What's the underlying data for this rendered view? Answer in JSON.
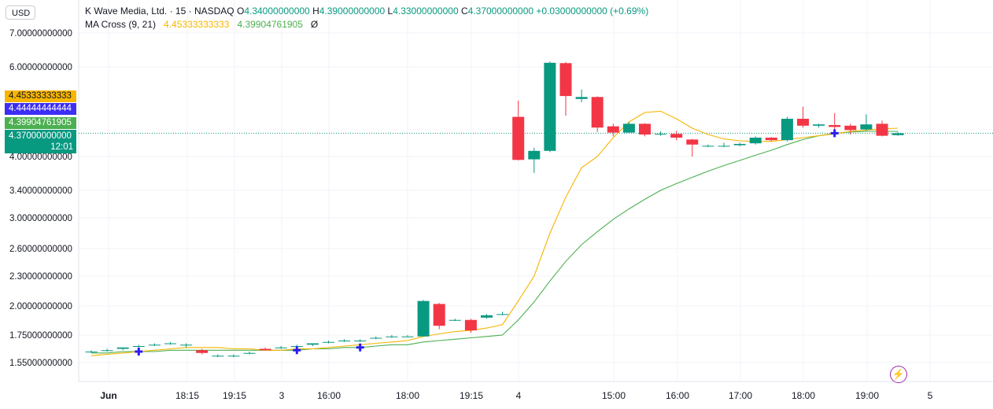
{
  "header": {
    "symbol": "K Wave Media, Ltd. · 15 · NASDAQ",
    "o_label": "O",
    "o_value": "4.34000000000",
    "h_label": "H",
    "h_value": "4.39000000000",
    "l_label": "L",
    "l_value": "4.33000000000",
    "c_label": "C",
    "c_value": "4.37000000000",
    "change": "+0.03000000000 (+0.69%)"
  },
  "indicator": {
    "name": "MA Cross (9, 21)",
    "fast_value": "4.45333333333",
    "slow_value": "4.39904761905",
    "eye_icon": "Ø"
  },
  "currency": "USD",
  "price_tags": {
    "fast_ma": "4.45333333333",
    "crosshair": "4.44444444444",
    "slow_ma": "4.39904761905",
    "last_price": "4.37000000000",
    "countdown": "12:01"
  },
  "colors": {
    "up": "#089981",
    "down": "#f23645",
    "fast_ma": "#f7b500",
    "slow_ma": "#4caf50",
    "cross_marker": "#2b1cf5",
    "crosshair_tag": "#3d2ef5",
    "last_price_tag": "#089981",
    "slow_tag": "#4caf50",
    "fast_tag": "#f7b500"
  },
  "chart_data": {
    "type": "candlestick",
    "y_ticks": [
      "7.00000000000",
      "6.00000000000",
      "4.00000000000",
      "3.40000000000",
      "3.00000000000",
      "2.60000000000",
      "2.30000000000",
      "2.00000000000",
      "1.75000000000",
      "1.55000000000"
    ],
    "y_tick_values": [
      7.0,
      6.0,
      4.0,
      3.4,
      3.0,
      2.6,
      2.3,
      2.0,
      1.75,
      1.55
    ],
    "x_ticks": [
      "Jun",
      "18:15",
      "19:15",
      "3",
      "16:00",
      "18:00",
      "19:15",
      "4",
      "15:00",
      "16:00",
      "17:00",
      "18:00",
      "19:00",
      "5"
    ],
    "candles": [
      {
        "o": 1.63,
        "h": 1.64,
        "l": 1.62,
        "c": 1.63
      },
      {
        "o": 1.64,
        "h": 1.65,
        "l": 1.63,
        "c": 1.64
      },
      {
        "o": 1.65,
        "h": 1.66,
        "l": 1.64,
        "c": 1.66
      },
      {
        "o": 1.67,
        "h": 1.68,
        "l": 1.66,
        "c": 1.67
      },
      {
        "o": 1.68,
        "h": 1.69,
        "l": 1.67,
        "c": 1.68
      },
      {
        "o": 1.69,
        "h": 1.7,
        "l": 1.68,
        "c": 1.69
      },
      {
        "o": 1.68,
        "h": 1.69,
        "l": 1.66,
        "c": 1.68
      },
      {
        "o": 1.64,
        "h": 1.65,
        "l": 1.61,
        "c": 1.62
      },
      {
        "o": 1.6,
        "h": 1.61,
        "l": 1.59,
        "c": 1.6
      },
      {
        "o": 1.6,
        "h": 1.61,
        "l": 1.59,
        "c": 1.6
      },
      {
        "o": 1.62,
        "h": 1.63,
        "l": 1.61,
        "c": 1.62
      },
      {
        "o": 1.65,
        "h": 1.66,
        "l": 1.64,
        "c": 1.64
      },
      {
        "o": 1.66,
        "h": 1.67,
        "l": 1.65,
        "c": 1.66
      },
      {
        "o": 1.67,
        "h": 1.68,
        "l": 1.66,
        "c": 1.67
      },
      {
        "o": 1.68,
        "h": 1.69,
        "l": 1.67,
        "c": 1.69
      },
      {
        "o": 1.7,
        "h": 1.71,
        "l": 1.69,
        "c": 1.7
      },
      {
        "o": 1.71,
        "h": 1.72,
        "l": 1.7,
        "c": 1.71
      },
      {
        "o": 1.71,
        "h": 1.72,
        "l": 1.7,
        "c": 1.71
      },
      {
        "o": 1.73,
        "h": 1.74,
        "l": 1.72,
        "c": 1.73
      },
      {
        "o": 1.74,
        "h": 1.75,
        "l": 1.73,
        "c": 1.74
      },
      {
        "o": 1.74,
        "h": 1.75,
        "l": 1.74,
        "c": 1.74
      },
      {
        "o": 1.74,
        "h": 2.06,
        "l": 1.74,
        "c": 2.05
      },
      {
        "o": 2.02,
        "h": 2.03,
        "l": 1.8,
        "c": 1.83
      },
      {
        "o": 1.88,
        "h": 1.89,
        "l": 1.87,
        "c": 1.88
      },
      {
        "o": 1.88,
        "h": 1.89,
        "l": 1.77,
        "c": 1.79
      },
      {
        "o": 1.9,
        "h": 1.93,
        "l": 1.89,
        "c": 1.92
      },
      {
        "o": 1.93,
        "h": 1.95,
        "l": 1.92,
        "c": 1.93
      },
      {
        "o": 4.63,
        "h": 4.97,
        "l": 3.93,
        "c": 3.94
      },
      {
        "o": 3.95,
        "h": 4.14,
        "l": 3.71,
        "c": 4.09
      },
      {
        "o": 4.09,
        "h": 6.16,
        "l": 4.07,
        "c": 6.12
      },
      {
        "o": 6.11,
        "h": 6.14,
        "l": 4.65,
        "c": 5.11
      },
      {
        "o": 5.02,
        "h": 5.31,
        "l": 4.92,
        "c": 5.08
      },
      {
        "o": 5.08,
        "h": 5.1,
        "l": 4.39,
        "c": 4.46
      },
      {
        "o": 4.48,
        "h": 4.52,
        "l": 4.32,
        "c": 4.38
      },
      {
        "o": 4.38,
        "h": 4.55,
        "l": 4.37,
        "c": 4.52
      },
      {
        "o": 4.52,
        "h": 4.53,
        "l": 4.32,
        "c": 4.35
      },
      {
        "o": 4.35,
        "h": 4.4,
        "l": 4.33,
        "c": 4.36
      },
      {
        "o": 4.36,
        "h": 4.41,
        "l": 4.26,
        "c": 4.3
      },
      {
        "o": 4.27,
        "h": 4.28,
        "l": 4.0,
        "c": 4.19
      },
      {
        "o": 4.17,
        "h": 4.19,
        "l": 4.15,
        "c": 4.17
      },
      {
        "o": 4.17,
        "h": 4.22,
        "l": 4.15,
        "c": 4.17
      },
      {
        "o": 4.18,
        "h": 4.22,
        "l": 4.16,
        "c": 4.2
      },
      {
        "o": 4.21,
        "h": 4.32,
        "l": 4.19,
        "c": 4.3
      },
      {
        "o": 4.3,
        "h": 4.31,
        "l": 4.24,
        "c": 4.26
      },
      {
        "o": 4.26,
        "h": 4.63,
        "l": 4.24,
        "c": 4.6
      },
      {
        "o": 4.6,
        "h": 4.79,
        "l": 4.46,
        "c": 4.49
      },
      {
        "o": 4.49,
        "h": 4.52,
        "l": 4.46,
        "c": 4.51
      },
      {
        "o": 4.5,
        "h": 4.69,
        "l": 4.38,
        "c": 4.47
      },
      {
        "o": 4.49,
        "h": 4.52,
        "l": 4.35,
        "c": 4.42
      },
      {
        "o": 4.43,
        "h": 4.67,
        "l": 4.41,
        "c": 4.51
      },
      {
        "o": 4.52,
        "h": 4.57,
        "l": 4.32,
        "c": 4.33
      },
      {
        "o": 4.34,
        "h": 4.39,
        "l": 4.33,
        "c": 4.37
      }
    ],
    "ma_fast": [
      1.6,
      1.61,
      1.62,
      1.63,
      1.64,
      1.65,
      1.66,
      1.66,
      1.66,
      1.65,
      1.65,
      1.64,
      1.64,
      1.65,
      1.65,
      1.66,
      1.67,
      1.68,
      1.69,
      1.7,
      1.71,
      1.74,
      1.76,
      1.78,
      1.79,
      1.81,
      1.84,
      2.05,
      2.3,
      2.8,
      3.3,
      3.8,
      4.0,
      4.3,
      4.55,
      4.7,
      4.72,
      4.6,
      4.45,
      4.35,
      4.28,
      4.25,
      4.24,
      4.24,
      4.27,
      4.3,
      4.33,
      4.36,
      4.4,
      4.42,
      4.44,
      4.45
    ],
    "ma_slow": [
      1.62,
      1.62,
      1.63,
      1.63,
      1.63,
      1.64,
      1.64,
      1.64,
      1.64,
      1.64,
      1.64,
      1.64,
      1.64,
      1.64,
      1.65,
      1.65,
      1.66,
      1.66,
      1.67,
      1.68,
      1.68,
      1.7,
      1.71,
      1.72,
      1.73,
      1.74,
      1.75,
      1.88,
      2.04,
      2.25,
      2.46,
      2.65,
      2.82,
      2.98,
      3.13,
      3.27,
      3.4,
      3.52,
      3.63,
      3.74,
      3.84,
      3.93,
      4.02,
      4.1,
      4.19,
      4.27,
      4.33,
      4.37,
      4.39,
      4.4,
      4.4,
      4.4
    ],
    "cross_markers": [
      3,
      13,
      17,
      47
    ]
  }
}
